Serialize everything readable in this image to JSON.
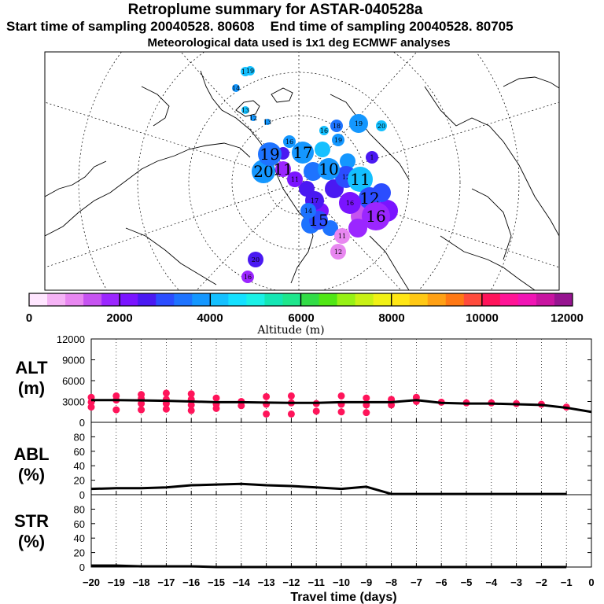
{
  "header": {
    "title": "Retroplume summary for ASTAR-040528a",
    "subtitle_start": "Start time of sampling 20040528. 80608",
    "subtitle_end": "End time of sampling 20040528. 80705",
    "subtitle_met": "Meteorological data used is 1x1 deg ECMWF analyses"
  },
  "colorbar": {
    "label": "Altitude (m)",
    "ticks": [
      "0",
      "2000",
      "4000",
      "6000",
      "8000",
      "10000",
      "12000"
    ],
    "colors": [
      "#ffe6ff",
      "#f5b3f5",
      "#e887f0",
      "#c653f0",
      "#9b26ff",
      "#7a14ff",
      "#4a19f2",
      "#2b4dff",
      "#1e73ff",
      "#1497ff",
      "#14c0ff",
      "#14e0ff",
      "#1af0e6",
      "#14e6b4",
      "#1ee68c",
      "#32dc46",
      "#50e614",
      "#96f014",
      "#c8f014",
      "#f0f014",
      "#ffe614",
      "#ffc814",
      "#ffa014",
      "#ff7814",
      "#ff4b3c",
      "#ff145a",
      "#ff1496",
      "#f014b4",
      "#c814a0",
      "#961490"
    ]
  },
  "map": {
    "labels": [
      {
        "text": "20",
        "size": "large"
      },
      {
        "text": "19",
        "size": "large"
      },
      {
        "text": "17",
        "size": "large"
      },
      {
        "text": "16",
        "size": "small"
      },
      {
        "text": "19",
        "size": "small"
      },
      {
        "text": "20",
        "size": "small"
      },
      {
        "text": "18",
        "size": "small"
      },
      {
        "text": "19",
        "size": "small"
      },
      {
        "text": "16",
        "size": "small"
      },
      {
        "text": "13",
        "size": "small"
      },
      {
        "text": "12",
        "size": "small"
      },
      {
        "text": "11",
        "size": "large"
      },
      {
        "text": "11",
        "size": "small"
      },
      {
        "text": "12",
        "size": "small"
      },
      {
        "text": "10",
        "size": "large"
      },
      {
        "text": "11",
        "size": "large"
      },
      {
        "text": "12",
        "size": "large"
      },
      {
        "text": "16",
        "size": "large"
      },
      {
        "text": "11",
        "size": "small"
      },
      {
        "text": "12",
        "size": "small"
      },
      {
        "text": "20",
        "size": "small"
      },
      {
        "text": "16",
        "size": "small"
      },
      {
        "text": "17",
        "size": "small"
      },
      {
        "text": "15",
        "size": "large"
      },
      {
        "text": "14",
        "size": "small"
      },
      {
        "text": "16",
        "size": "small"
      },
      {
        "text": "1",
        "size": "small"
      },
      {
        "text": "14",
        "size": "small"
      },
      {
        "text": "18",
        "size": "small"
      },
      {
        "text": "13",
        "size": "small"
      },
      {
        "text": "19",
        "size": "small"
      }
    ]
  },
  "chart_data": [
    {
      "type": "line",
      "panel": "ALT",
      "ylabel": "ALT\n(m)",
      "ylim": [
        0,
        12000
      ],
      "yticks": [
        "0",
        "3000",
        "6000",
        "9000",
        "12000"
      ],
      "x": [
        -20,
        -19,
        -18,
        -17,
        -16,
        -15,
        -14,
        -13,
        -12,
        -11,
        -10,
        -9,
        -8,
        -7,
        -6,
        -5,
        -4,
        -3,
        -2,
        -1,
        0
      ],
      "values": [
        3200,
        3200,
        3150,
        3100,
        3000,
        2900,
        2900,
        2850,
        2800,
        2800,
        2900,
        2900,
        2900,
        3200,
        2800,
        2700,
        2700,
        2600,
        2500,
        2100,
        1500
      ],
      "scatter_x": [
        -20,
        -20,
        -20,
        -19,
        -19,
        -19,
        -18,
        -18,
        -18,
        -18,
        -17,
        -17,
        -17,
        -17,
        -16,
        -16,
        -16,
        -16,
        -15,
        -15,
        -15,
        -14,
        -14,
        -13,
        -13,
        -13,
        -12,
        -12,
        -12,
        -11,
        -11,
        -10,
        -10,
        -10,
        -9,
        -9,
        -9,
        -8,
        -8,
        -7,
        -7,
        -6,
        -5,
        -4,
        -3,
        -2,
        -1
      ],
      "scatter_y": [
        3600,
        2900,
        2200,
        3800,
        3200,
        1800,
        4000,
        3400,
        2700,
        1800,
        4200,
        3300,
        2700,
        1900,
        4100,
        3300,
        2500,
        1700,
        3500,
        2600,
        2000,
        3000,
        2400,
        3700,
        2600,
        1200,
        3800,
        2800,
        1200,
        2700,
        1600,
        3800,
        2600,
        1500,
        3500,
        2500,
        1400,
        3300,
        2500,
        3600,
        3000,
        2900,
        2800,
        2800,
        2700,
        2600,
        2200
      ],
      "series_color": "#000000",
      "point_color": "#ff145a"
    },
    {
      "type": "line",
      "panel": "ABL",
      "ylabel": "ABL\n(%)",
      "ylim": [
        0,
        100
      ],
      "yticks": [
        "0",
        "20",
        "40",
        "60",
        "80"
      ],
      "x": [
        -20,
        -19,
        -18,
        -17,
        -16,
        -15,
        -14,
        -13,
        -12,
        -11,
        -10,
        -9,
        -8,
        -7,
        -6,
        -5,
        -4,
        -3,
        -2,
        -1
      ],
      "values": [
        8,
        9,
        9,
        10,
        13,
        14,
        15,
        13,
        12,
        10,
        8,
        11,
        1,
        1,
        1,
        1,
        1,
        1,
        1,
        1
      ]
    },
    {
      "type": "line",
      "panel": "STR",
      "ylabel": "STR\n(%)",
      "ylim": [
        0,
        100
      ],
      "yticks": [
        "0",
        "20",
        "40",
        "60",
        "80"
      ],
      "x": [
        -20,
        -19,
        -18,
        -17,
        -16,
        -15,
        -14,
        -13,
        -12,
        -11,
        -10,
        -9,
        -8,
        -7,
        -6,
        -5,
        -4,
        -3,
        -2,
        -1
      ],
      "values": [
        2,
        2,
        1,
        1,
        1,
        0,
        0,
        0,
        0,
        0,
        0,
        0,
        0,
        0,
        0,
        0,
        0,
        0,
        0,
        0
      ]
    }
  ],
  "xaxis": {
    "label": "Travel time (days)",
    "ticks": [
      "−20",
      "−19",
      "−18",
      "−17",
      "−16",
      "−15",
      "−14",
      "−13",
      "−12",
      "−11",
      "−10",
      "−9",
      "−8",
      "−7",
      "−6",
      "−5",
      "−4",
      "−3",
      "−2",
      "−1",
      "0"
    ]
  }
}
